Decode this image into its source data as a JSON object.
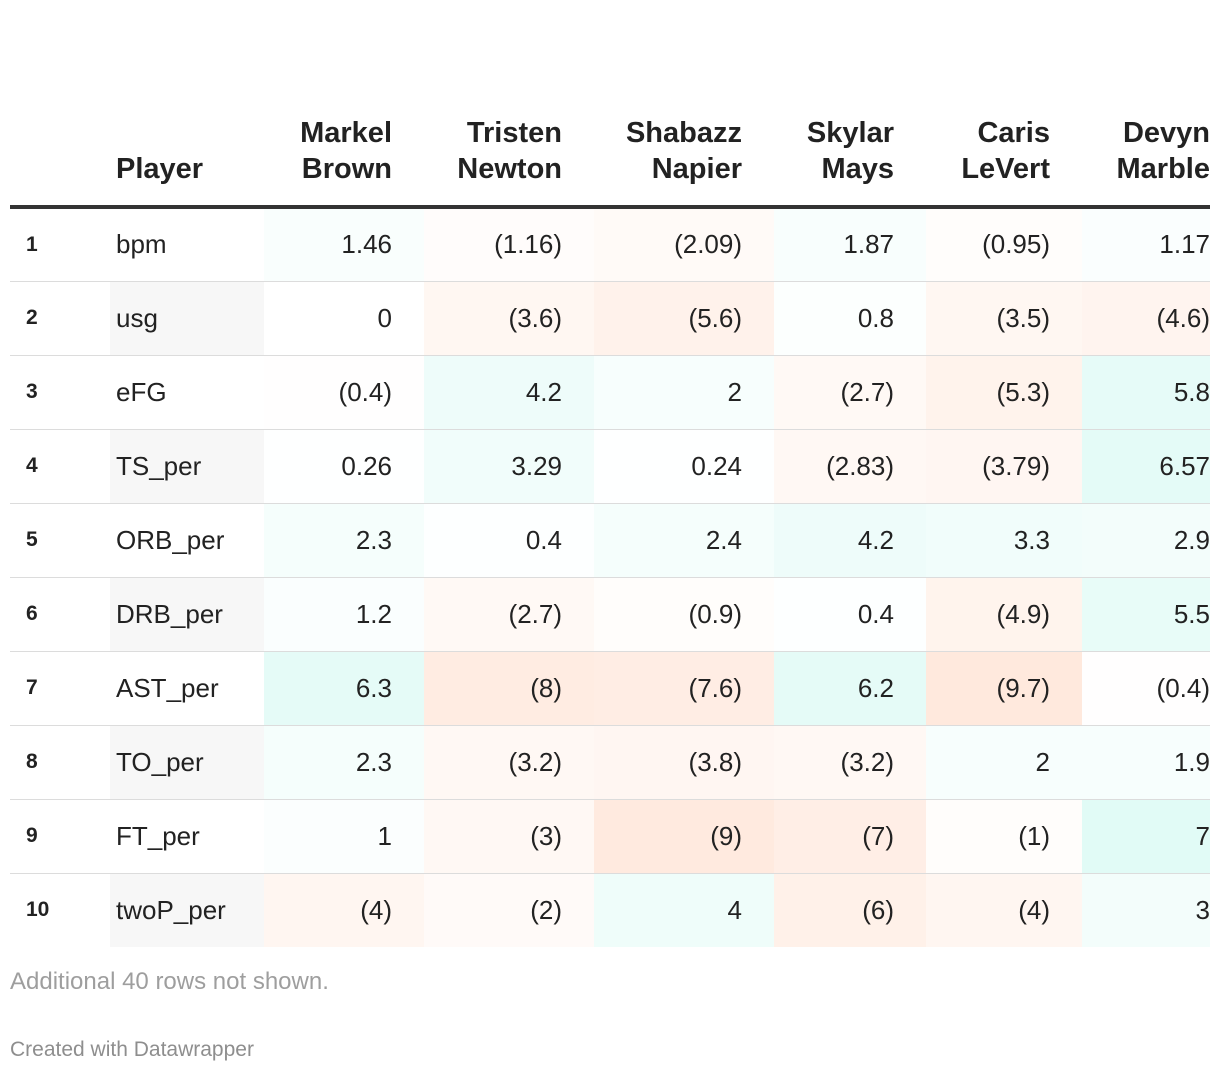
{
  "chart_data": {
    "type": "table",
    "header": {
      "stat_label": "Player",
      "players": [
        [
          "Markel",
          "Brown"
        ],
        [
          "Tristen",
          "Newton"
        ],
        [
          "Shabazz",
          "Napier"
        ],
        [
          "Skylar",
          "Mays"
        ],
        [
          "Caris",
          "LeVert"
        ],
        [
          "Devyn",
          "Marble"
        ]
      ]
    },
    "rows": [
      {
        "index": "1",
        "stat": "bpm",
        "values": [
          1.46,
          -1.16,
          -2.09,
          1.87,
          -0.95,
          1.17
        ],
        "labels": [
          "1.46",
          "(1.16)",
          "(2.09)",
          "1.87",
          "(0.95)",
          "1.17"
        ]
      },
      {
        "index": "2",
        "stat": "usg",
        "values": [
          0,
          -3.6,
          -5.6,
          0.8,
          -3.5,
          -4.6
        ],
        "labels": [
          "0",
          "(3.6)",
          "(5.6)",
          "0.8",
          "(3.5)",
          "(4.6)"
        ]
      },
      {
        "index": "3",
        "stat": "eFG",
        "values": [
          -0.4,
          4.2,
          2,
          -2.7,
          -5.3,
          5.8
        ],
        "labels": [
          "(0.4)",
          "4.2",
          "2",
          "(2.7)",
          "(5.3)",
          "5.8"
        ]
      },
      {
        "index": "4",
        "stat": "TS_per",
        "values": [
          0.26,
          3.29,
          0.24,
          -2.83,
          -3.79,
          6.57
        ],
        "labels": [
          "0.26",
          "3.29",
          "0.24",
          "(2.83)",
          "(3.79)",
          "6.57"
        ]
      },
      {
        "index": "5",
        "stat": "ORB_per",
        "values": [
          2.3,
          0.4,
          2.4,
          4.2,
          3.3,
          2.9
        ],
        "labels": [
          "2.3",
          "0.4",
          "2.4",
          "4.2",
          "3.3",
          "2.9"
        ]
      },
      {
        "index": "6",
        "stat": "DRB_per",
        "values": [
          1.2,
          -2.7,
          -0.9,
          0.4,
          -4.9,
          5.5
        ],
        "labels": [
          "1.2",
          "(2.7)",
          "(0.9)",
          "0.4",
          "(4.9)",
          "5.5"
        ]
      },
      {
        "index": "7",
        "stat": "AST_per",
        "values": [
          6.3,
          -8,
          -7.6,
          6.2,
          -9.7,
          -0.4
        ],
        "labels": [
          "6.3",
          "(8)",
          "(7.6)",
          "6.2",
          "(9.7)",
          "(0.4)"
        ]
      },
      {
        "index": "8",
        "stat": "TO_per",
        "values": [
          2.3,
          -3.2,
          -3.8,
          -3.2,
          2,
          1.9
        ],
        "labels": [
          "2.3",
          "(3.2)",
          "(3.8)",
          "(3.2)",
          "2",
          "1.9"
        ]
      },
      {
        "index": "9",
        "stat": "FT_per",
        "values": [
          1,
          -3,
          -9,
          -7,
          -1,
          7
        ],
        "labels": [
          "1",
          "(3)",
          "(9)",
          "(7)",
          "(1)",
          "7"
        ]
      },
      {
        "index": "10",
        "stat": "twoP_per",
        "values": [
          -4,
          -2,
          4,
          -6,
          -4,
          3
        ],
        "labels": [
          "(4)",
          "(2)",
          "4",
          "(6)",
          "(4)",
          "3"
        ]
      }
    ],
    "colors": {
      "positive": "#2ee0c0",
      "negative": "#ff8a4c",
      "stripe": "#f7f7f7",
      "header_rule": "#333333"
    }
  },
  "notes": "Additional 40 rows not shown.",
  "credit": "Created with Datawrapper"
}
